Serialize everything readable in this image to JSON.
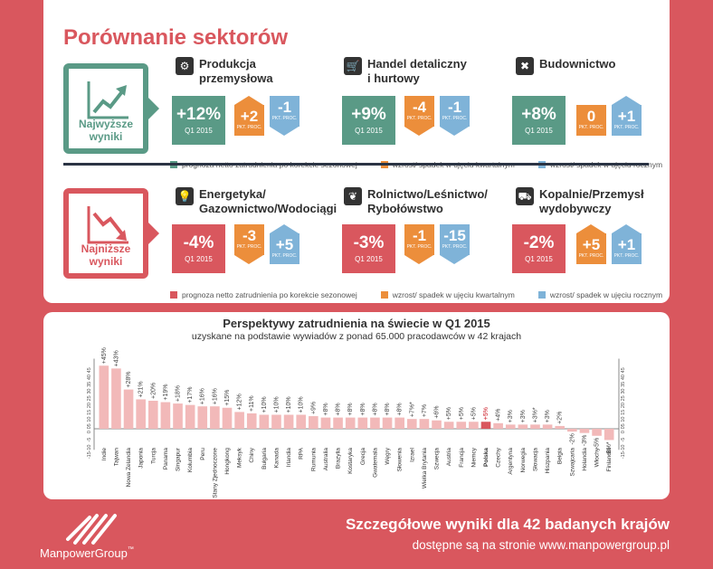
{
  "title": "Porównanie sektorów",
  "top_rank": {
    "label_line1": "Najwyższe",
    "label_line2": "wyniki",
    "color": "#5a9a86"
  },
  "bottom_rank": {
    "label_line1": "Najniższe",
    "label_line2": "wyniki",
    "color": "#d9575e"
  },
  "top_sectors": [
    {
      "name_line1": "Produkcja",
      "name_line2": "przemysłowa",
      "icon": "gears-icon",
      "value": "+12%",
      "quarter": "Q1 2015",
      "qoq": "+2",
      "qoq_dir": "up",
      "yoy": "-1",
      "yoy_dir": "down",
      "unit": "PKT. PROC."
    },
    {
      "name_line1": "Handel detaliczny",
      "name_line2": "i hurtowy",
      "icon": "cart-icon",
      "value": "+9%",
      "quarter": "Q1 2015",
      "qoq": "-4",
      "qoq_dir": "down",
      "yoy": "-1",
      "yoy_dir": "down",
      "unit": "PKT. PROC."
    },
    {
      "name_line1": "Budownictwo",
      "name_line2": "",
      "icon": "tools-icon",
      "value": "+8%",
      "quarter": "Q1 2015",
      "qoq": "0",
      "qoq_dir": "none",
      "yoy": "+1",
      "yoy_dir": "up",
      "unit": "PKT. PROC."
    }
  ],
  "bottom_sectors": [
    {
      "name_line1": "Energetyka/",
      "name_line2": "Gazownictwo/Wodociągi",
      "icon": "bulb-icon",
      "value": "-4%",
      "quarter": "Q1 2015",
      "qoq": "-3",
      "qoq_dir": "down",
      "yoy": "+5",
      "yoy_dir": "up",
      "unit": "PKT. PROC."
    },
    {
      "name_line1": "Rolnictwo/Leśnictwo/",
      "name_line2": "Rybołówstwo",
      "icon": "leaf-icon",
      "value": "-3%",
      "quarter": "Q1 2015",
      "qoq": "-1",
      "qoq_dir": "down",
      "yoy": "-15",
      "yoy_dir": "down",
      "unit": "PKT. PROC."
    },
    {
      "name_line1": "Kopalnie/Przemysł",
      "name_line2": "wydobywczy",
      "icon": "truck-icon",
      "value": "-2%",
      "quarter": "Q1 2015",
      "qoq": "+5",
      "qoq_dir": "up",
      "yoy": "+1",
      "yoy_dir": "up",
      "unit": "PKT. PROC."
    }
  ],
  "legend_top": [
    "prognoza netto zatrudnienia po korekcie sezonowej",
    "wzrost/ spadek w ujęciu kwartalnym",
    "wzrost/ spadek w ujęciu rocznym"
  ],
  "legend_bottom": [
    "prognoza netto zatrudnienia po korekcie sezonowej",
    "wzrost/ spadek w ujęciu kwartalnym",
    "wzrost/ spadek w ujęciu rocznym"
  ],
  "colors": {
    "green": "#5a9a86",
    "red": "#d9575e",
    "orange": "#ec8e3b",
    "blue": "#7fb3d8",
    "bar": "#f2b9b9",
    "bar_highlight": "#d9575e"
  },
  "chart_data": {
    "type": "bar",
    "title": "Perspektywy zatrudnienia na świecie w Q1 2015",
    "subtitle": "uzyskane na podstawie wywiadów z ponad 65.000 pracodawców w 42 krajach",
    "ylim": [
      -15,
      50
    ],
    "yticks": [
      45,
      40,
      35,
      30,
      25,
      20,
      15,
      10,
      5,
      0,
      -5,
      -10,
      -15
    ],
    "ytick_labels": [
      "45",
      "40",
      "35",
      "30",
      "25",
      "20",
      "15",
      "10",
      "05",
      "0",
      "-5",
      "-10",
      "-15"
    ],
    "highlight": "Polska",
    "categories": [
      "Indie",
      "Tajwan",
      "Nowa Zelandia",
      "Japonia",
      "Turcja",
      "Panama",
      "Singapur",
      "Kolumbia",
      "Peru",
      "Stany Zjednoczone",
      "Hongkong",
      "Meksyk",
      "Chiny",
      "Bułgaria",
      "Kanada",
      "Irlandia",
      "RPA",
      "Rumunia",
      "Australia",
      "Brazylia",
      "Kostaryka",
      "Grecja",
      "Gwatemala",
      "Węgry",
      "Słowenia",
      "Izrael",
      "Wielka Brytania",
      "Szwecja",
      "Austria",
      "Francja",
      "Niemcy",
      "Polska",
      "Czechy",
      "Argentyna",
      "Norwegia",
      "Słowacja",
      "Hiszpania",
      "Belgia",
      "Szwajcaria",
      "Holandia",
      "Włochy",
      "Finlandia"
    ],
    "values": [
      45,
      43,
      28,
      21,
      20,
      19,
      18,
      17,
      16,
      16,
      15,
      12,
      11,
      10,
      10,
      10,
      10,
      9,
      8,
      8,
      8,
      8,
      8,
      8,
      8,
      7,
      7,
      6,
      5,
      5,
      5,
      5,
      4,
      3,
      3,
      3,
      3,
      2,
      -2,
      -3,
      -5,
      -8
    ],
    "value_labels": [
      "+45%",
      "+43%",
      "+28%",
      "+21%",
      "+20%",
      "+19%",
      "+18%",
      "+17%",
      "+16%",
      "+16%",
      "+15%",
      "+12%",
      "+11%",
      "+10%",
      "+10%",
      "+10%",
      "+10%",
      "+9%",
      "+8%",
      "+8%",
      "+8%",
      "+8%",
      "+8%",
      "+8%",
      "+8%",
      "+7%*",
      "+7%",
      "+6%",
      "+5%",
      "+5%",
      "+5%",
      "+5%",
      "+4%",
      "+3%",
      "+3%",
      "+3%*",
      "+3%",
      "+2%",
      "-2%",
      "-3%",
      "-5%",
      "-8%*"
    ]
  },
  "footer": {
    "title": "Szczegółowe wyniki dla 42 badanych krajów",
    "subtitle": "dostępne są na stronie www.manpowergroup.pl",
    "brand": "ManpowerGroup",
    "brand_mark": "™"
  }
}
